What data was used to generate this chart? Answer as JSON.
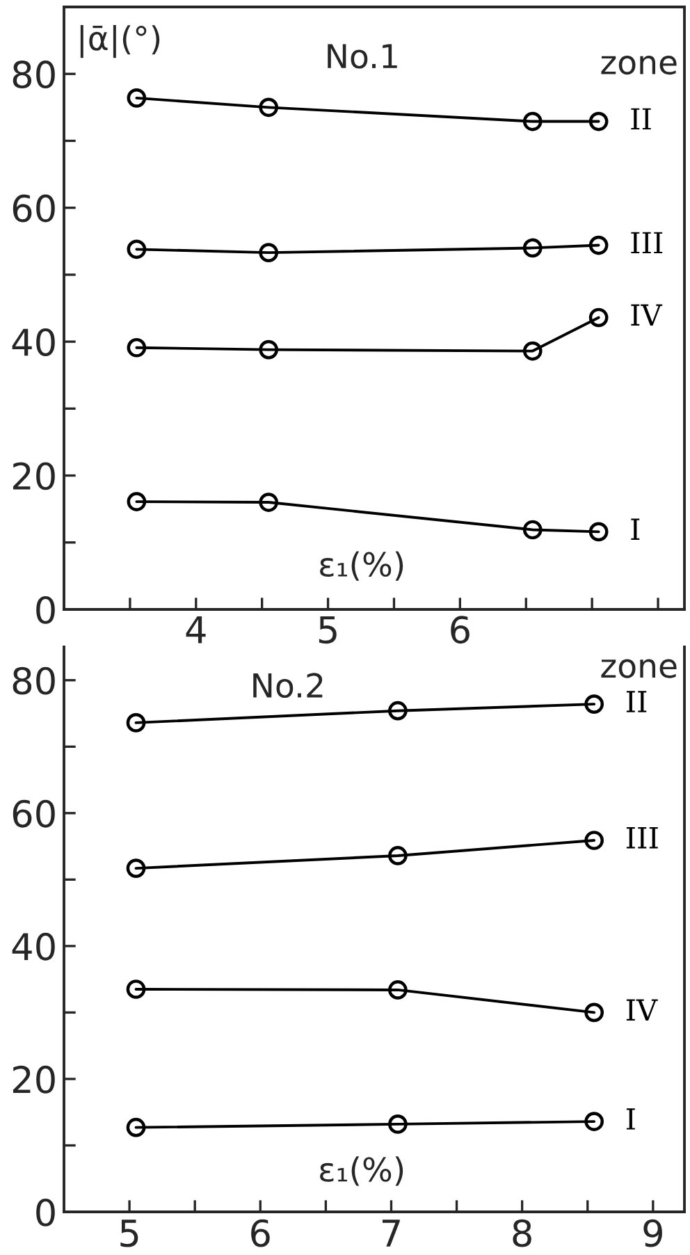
{
  "chart_data": [
    {
      "type": "line",
      "title": "No.1",
      "xlabel": "ε₁(%)",
      "ylabel": "|ᾱ|(°)",
      "legend_title": "zone",
      "marker": "circle",
      "x": [
        3.55,
        4.55,
        6.55,
        7.05
      ],
      "series": [
        {
          "name": "II",
          "color": "#000000",
          "values": [
            76.4,
            75.0,
            72.9,
            72.9
          ]
        },
        {
          "name": "III",
          "color": "#000000",
          "values": [
            53.8,
            53.3,
            54.0,
            54.4
          ]
        },
        {
          "name": "IV",
          "color": "#000000",
          "values": [
            39.1,
            38.8,
            38.6,
            43.6
          ]
        },
        {
          "name": "I",
          "color": "#000000",
          "values": [
            16.1,
            16.0,
            11.9,
            11.6
          ]
        }
      ],
      "xlim": [
        3.0,
        7.7
      ],
      "ylim": [
        0,
        90
      ],
      "legend": "right",
      "xticks": [
        {
          "value": 3.5,
          "label": null
        },
        4,
        {
          "value": 4.5,
          "label": null
        },
        5,
        {
          "value": 5.5,
          "label": null
        },
        6,
        {
          "value": 6.5,
          "label": null
        },
        {
          "value": 7,
          "label": null
        },
        {
          "value": 7.5,
          "label": null
        }
      ],
      "yticks": [
        0,
        {
          "value": 10,
          "label": null
        },
        20,
        {
          "value": 30,
          "label": null
        },
        40,
        {
          "value": 50,
          "label": null
        },
        60,
        {
          "value": 70,
          "label": null
        },
        80
      ]
    },
    {
      "type": "line",
      "title": "No.2",
      "xlabel": "ε₁(%)",
      "legend_title": "zone",
      "marker": "circle",
      "x": [
        5.05,
        7.05,
        8.55
      ],
      "series": [
        {
          "name": "II",
          "color": "#000000",
          "values": [
            73.6,
            75.4,
            76.4
          ]
        },
        {
          "name": "III",
          "color": "#000000",
          "values": [
            51.7,
            53.6,
            55.9
          ]
        },
        {
          "name": "IV",
          "color": "#000000",
          "values": [
            33.5,
            33.4,
            30.0
          ]
        },
        {
          "name": "I",
          "color": "#000000",
          "values": [
            12.7,
            13.2,
            13.6
          ]
        }
      ],
      "xlim": [
        4.5,
        9.24
      ],
      "ylim": [
        0,
        85
      ],
      "legend": "right",
      "xticks": [
        5,
        {
          "value": 5.5,
          "label": null
        },
        6,
        {
          "value": 6.5,
          "label": null
        },
        7,
        {
          "value": 7.5,
          "label": null
        },
        8,
        {
          "value": 8.5,
          "label": null
        },
        9
      ],
      "yticks": [
        0,
        {
          "value": 10,
          "label": null
        },
        20,
        {
          "value": 30,
          "label": null
        },
        40,
        {
          "value": 50,
          "label": null
        },
        60,
        {
          "value": 70,
          "label": null
        },
        80
      ]
    }
  ]
}
